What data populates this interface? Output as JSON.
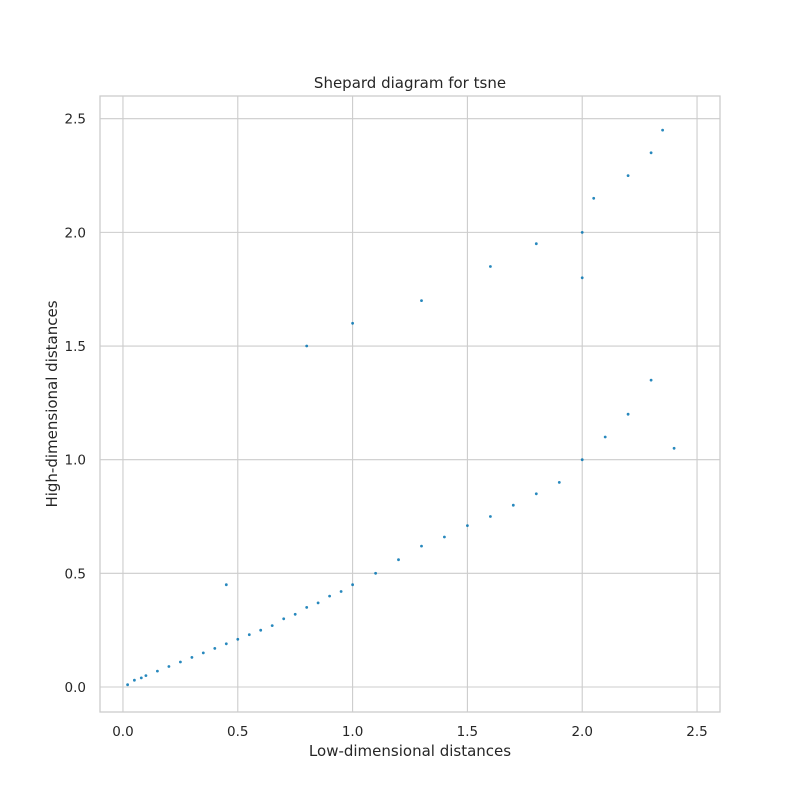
{
  "chart_data": {
    "type": "scatter",
    "title": "Shepard diagram for tsne",
    "xlabel": "Low-dimensional distances",
    "ylabel": "High-dimensional distances",
    "xlim": [
      -0.1,
      2.6
    ],
    "ylim": [
      -0.11,
      2.6
    ],
    "xticks": [
      0.0,
      0.5,
      1.0,
      1.5,
      2.0,
      2.5
    ],
    "yticks": [
      0.0,
      0.5,
      1.0,
      1.5,
      2.0,
      2.5
    ],
    "xtick_labels": [
      "0.0",
      "0.5",
      "1.0",
      "1.5",
      "2.0",
      "2.5"
    ],
    "ytick_labels": [
      "0.0",
      "0.5",
      "1.0",
      "1.5",
      "2.0",
      "2.5"
    ],
    "grid": true,
    "point_color": "#0173b2",
    "series": [
      {
        "points": [
          [
            0.02,
            0.01
          ],
          [
            0.05,
            0.03
          ],
          [
            0.08,
            0.04
          ],
          [
            0.1,
            0.05
          ],
          [
            0.15,
            0.07
          ],
          [
            0.2,
            0.09
          ],
          [
            0.25,
            0.11
          ],
          [
            0.3,
            0.13
          ],
          [
            0.35,
            0.15
          ],
          [
            0.4,
            0.17
          ],
          [
            0.45,
            0.19
          ],
          [
            0.5,
            0.21
          ],
          [
            0.55,
            0.23
          ],
          [
            0.6,
            0.25
          ],
          [
            0.65,
            0.27
          ],
          [
            0.7,
            0.3
          ],
          [
            0.75,
            0.32
          ],
          [
            0.8,
            0.35
          ],
          [
            0.85,
            0.37
          ],
          [
            0.9,
            0.4
          ],
          [
            0.95,
            0.42
          ],
          [
            1.0,
            0.45
          ],
          [
            1.1,
            0.5
          ],
          [
            1.2,
            0.56
          ],
          [
            1.3,
            0.62
          ],
          [
            1.4,
            0.66
          ],
          [
            1.5,
            0.71
          ],
          [
            1.6,
            0.75
          ],
          [
            1.7,
            0.8
          ],
          [
            1.8,
            0.85
          ],
          [
            1.9,
            0.9
          ],
          [
            2.0,
            1.0
          ],
          [
            2.1,
            1.1
          ],
          [
            2.2,
            1.2
          ],
          [
            2.3,
            1.35
          ],
          [
            2.4,
            1.05
          ],
          [
            2.0,
            1.8
          ],
          [
            2.0,
            2.0
          ],
          [
            2.05,
            2.15
          ],
          [
            2.2,
            2.25
          ],
          [
            2.3,
            2.35
          ],
          [
            2.35,
            2.45
          ],
          [
            0.8,
            1.5
          ],
          [
            1.0,
            1.6
          ],
          [
            1.3,
            1.7
          ],
          [
            1.6,
            1.85
          ],
          [
            1.8,
            1.95
          ],
          [
            0.45,
            0.45
          ]
        ]
      }
    ]
  }
}
